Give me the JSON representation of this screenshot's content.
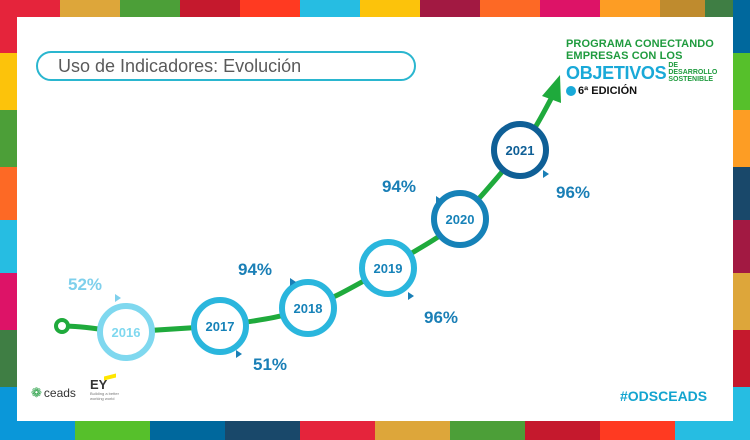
{
  "slide": {
    "title": "Uso de Indicadores: Evolución",
    "program": {
      "line1": "PROGRAMA CONECTANDO",
      "line2": "EMPRESAS CON LOS",
      "objetivos": "OBJETIVOS",
      "desarrollo_1": "DE DESARROLLO",
      "desarrollo_2": "SOSTENIBLE",
      "edition": "6ª EDICIÓN"
    },
    "logos": {
      "ceads": "ceads",
      "ey": "EY",
      "ey_tagline": "Building a better working world"
    },
    "hashtag": "#ODSCEADS"
  },
  "colors": {
    "line": "#1faa3c",
    "ring_light": "#7fd8ef",
    "ring_mid": "#2ab6dd",
    "ring_dark": "#1682b8",
    "ring_darkest": "#0f5f96",
    "pct_light": "#7fd0ec",
    "pct_dark": "#1a7fb6"
  },
  "chart_data": {
    "type": "line",
    "title": "Uso de Indicadores: Evolución",
    "x": [
      "2016",
      "2017",
      "2018",
      "2019",
      "2020",
      "2021"
    ],
    "labels": [
      {
        "year": "2016",
        "value": "52%"
      },
      {
        "year": "2017",
        "value": "51%"
      },
      {
        "year": "2018",
        "value": "94%"
      },
      {
        "year": "2019",
        "value": "96%"
      },
      {
        "year": "2020",
        "value": "94%"
      },
      {
        "year": "2021",
        "value": "96%"
      }
    ],
    "grid": false
  }
}
